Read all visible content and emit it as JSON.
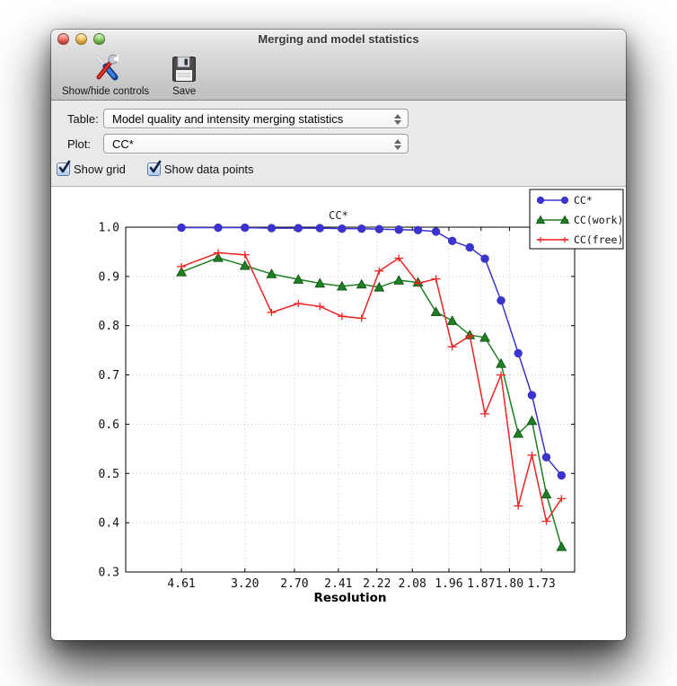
{
  "window": {
    "title": "Merging and model statistics"
  },
  "toolbar": {
    "show_hide_label": "Show/hide controls",
    "save_label": "Save"
  },
  "controls": {
    "table_label": "Table:",
    "table_value": "Model quality and intensity merging statistics",
    "plot_label": "Plot:",
    "plot_value": "CC*",
    "show_grid": {
      "label": "Show grid",
      "checked": true
    },
    "show_data_points": {
      "label": "Show data points",
      "checked": true
    }
  },
  "chart_data": {
    "type": "line",
    "title": "CC*",
    "xlabel": "Resolution",
    "x_scale": "reciprocal (1/d^2)",
    "x_ticks": [
      "4.61",
      "3.20",
      "2.70",
      "2.41",
      "2.22",
      "2.08",
      "1.96",
      "1.87",
      "1.80",
      "1.73"
    ],
    "y_ticks": [
      "1.0",
      "0.9",
      "0.8",
      "0.7",
      "0.6",
      "0.5",
      "0.4",
      "0.3"
    ],
    "ylim": [
      0.3,
      1.0
    ],
    "grid": true,
    "show_data_points": true,
    "legend_position": "top-right",
    "resolutions": [
      4.61,
      3.62,
      3.2,
      2.9,
      2.67,
      2.52,
      2.39,
      2.29,
      2.21,
      2.13,
      2.06,
      2.0,
      1.95,
      1.9,
      1.86,
      1.82,
      1.78,
      1.75,
      1.72,
      1.69
    ],
    "series": [
      {
        "name": "CC*",
        "color": "#3a33cd",
        "marker": "circle",
        "values": [
          0.999,
          0.999,
          0.999,
          0.998,
          0.998,
          0.998,
          0.997,
          0.997,
          0.996,
          0.995,
          0.994,
          0.991,
          0.972,
          0.959,
          0.936,
          0.851,
          0.744,
          0.659,
          0.533,
          0.496
        ]
      },
      {
        "name": "CC(work)",
        "color": "#1e8022",
        "marker": "triangle",
        "values": [
          0.909,
          0.938,
          0.922,
          0.905,
          0.894,
          0.886,
          0.88,
          0.884,
          0.878,
          0.892,
          0.888,
          0.828,
          0.81,
          0.781,
          0.776,
          0.723,
          0.581,
          0.607,
          0.458,
          0.351
        ]
      },
      {
        "name": "CC(free)",
        "color": "#ee2423",
        "marker": "plus",
        "values": [
          0.92,
          0.948,
          0.944,
          0.827,
          0.845,
          0.839,
          0.819,
          0.815,
          0.911,
          0.937,
          0.886,
          0.895,
          0.757,
          0.779,
          0.621,
          0.7,
          0.434,
          0.537,
          0.403,
          0.449
        ]
      }
    ]
  }
}
